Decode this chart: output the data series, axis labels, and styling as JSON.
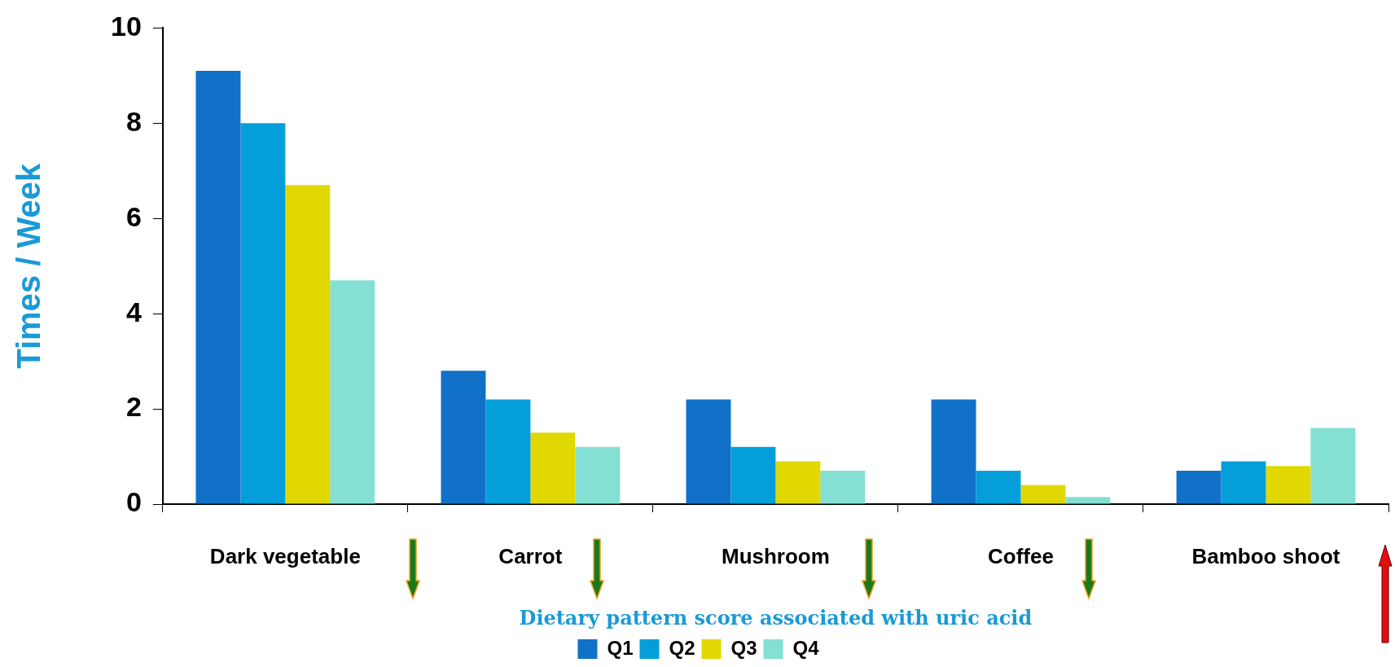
{
  "chart_data": {
    "type": "bar",
    "xlabel": "Dietary pattern score associated with uric acid",
    "ylabel": "Times / Week",
    "categories": [
      "Dark vegetable",
      "Carrot",
      "Mushroom",
      "Coffee",
      "Bamboo shoot"
    ],
    "series": [
      {
        "name": "Q1",
        "color": "#1170c8",
        "values": [
          9.1,
          2.8,
          2.2,
          2.2,
          0.7
        ]
      },
      {
        "name": "Q2",
        "color": "#049fda",
        "values": [
          8.0,
          2.2,
          1.2,
          0.7,
          0.9
        ]
      },
      {
        "name": "Q3",
        "color": "#e0d800",
        "values": [
          6.7,
          1.5,
          0.9,
          0.4,
          0.8
        ]
      },
      {
        "name": "Q4",
        "color": "#84e0d3",
        "values": [
          4.7,
          1.2,
          0.7,
          0.15,
          1.6
        ]
      }
    ],
    "ylim": [
      0,
      10
    ],
    "yticks": [
      0,
      2,
      4,
      6,
      8,
      10
    ],
    "grid": false,
    "legend": "bottom"
  }
}
